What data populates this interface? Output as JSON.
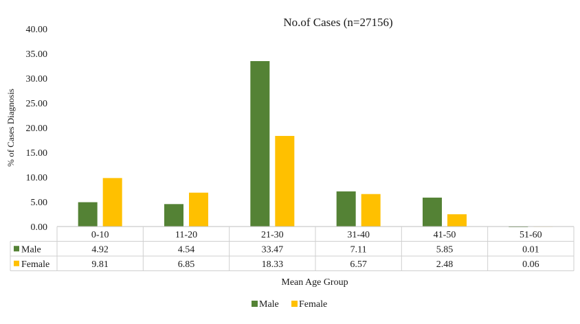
{
  "chart_data": {
    "type": "bar",
    "title": "No.of Cases (n=27156)",
    "xlabel": "Mean Age Group",
    "ylabel": "% of  Cases Diagnosis",
    "categories": [
      "0-10",
      "11-20",
      "21-30",
      "31-40",
      "41-50",
      "51-60"
    ],
    "series": [
      {
        "name": "Male",
        "color": "#548235",
        "values": [
          4.92,
          4.54,
          33.47,
          7.11,
          5.85,
          0.01
        ]
      },
      {
        "name": "Female",
        "color": "#FFC000",
        "values": [
          9.81,
          6.85,
          18.33,
          6.57,
          2.48,
          0.06
        ]
      }
    ],
    "value_labels": [
      [
        "4.92",
        "4.54",
        "33.47",
        "7.11",
        "5.85",
        "0.01"
      ],
      [
        "9.81",
        "6.85",
        "18.33",
        "6.57",
        "2.48",
        "0.06"
      ]
    ],
    "ylim": [
      0,
      40
    ],
    "yticks": [
      "0.00",
      "5.00",
      "10.00",
      "15.00",
      "20.00",
      "25.00",
      "30.00",
      "35.00",
      "40.00"
    ],
    "grid": false,
    "data_table": true,
    "legend_position": "bottom-center"
  }
}
